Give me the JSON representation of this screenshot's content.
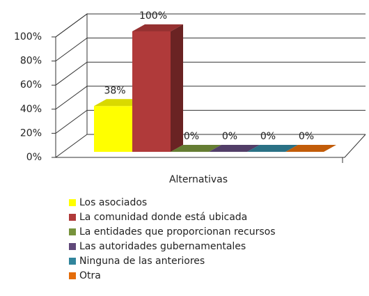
{
  "chart_data": {
    "type": "bar3d",
    "categories": [
      "Alternativas"
    ],
    "series": [
      {
        "name": "Los asociados",
        "color": "#ffff00",
        "values": [
          38
        ],
        "value_labels": [
          "38%"
        ]
      },
      {
        "name": "La comunidad donde está ubicada",
        "color": "#b03a3a",
        "values": [
          100
        ],
        "value_labels": [
          "100%"
        ]
      },
      {
        "name": "La entidades que proporcionan recursos",
        "color": "#77933c",
        "values": [
          0
        ],
        "value_labels": [
          "0%"
        ]
      },
      {
        "name": "Las autoridades gubernamentales",
        "color": "#60497a",
        "values": [
          0
        ],
        "value_labels": [
          "0%"
        ]
      },
      {
        "name": "Ninguna de las anteriores",
        "color": "#31859c",
        "values": [
          0
        ],
        "value_labels": [
          "0%"
        ]
      },
      {
        "name": "Otra",
        "color": "#e46c0a",
        "values": [
          0
        ],
        "value_labels": [
          "0%"
        ]
      }
    ],
    "ylim": [
      0,
      100
    ],
    "yticks": [
      {
        "value": 0,
        "label": "0%"
      },
      {
        "value": 20,
        "label": "20%"
      },
      {
        "value": 40,
        "label": "40%"
      },
      {
        "value": 60,
        "label": "60%"
      },
      {
        "value": 80,
        "label": "80%"
      },
      {
        "value": 100,
        "label": "100%"
      }
    ],
    "grid": true,
    "legend": "bottom"
  }
}
